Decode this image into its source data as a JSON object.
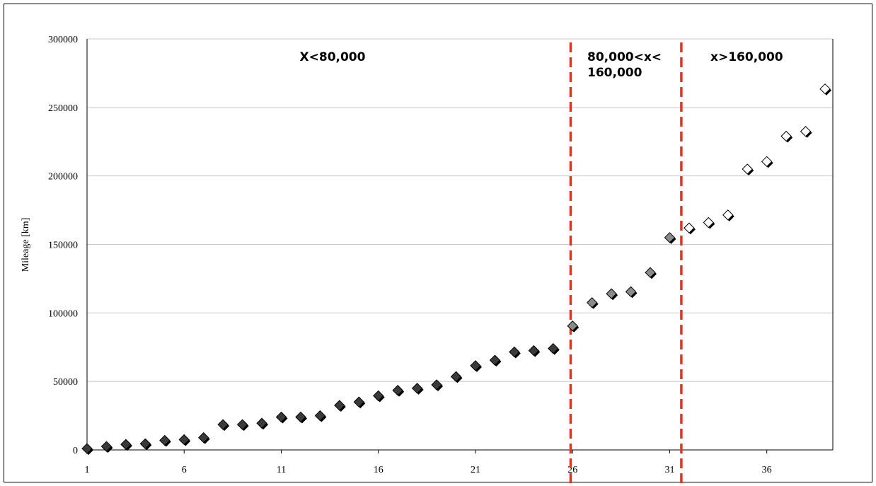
{
  "chart_data": {
    "type": "scatter",
    "title": "",
    "xlabel": "",
    "ylabel": "Mileage [km]",
    "xlim": [
      1,
      39.4
    ],
    "ylim": [
      0,
      300000
    ],
    "x_ticks": [
      "1",
      "6",
      "11",
      "16",
      "21",
      "26",
      "31",
      "36"
    ],
    "y_ticks": [
      "0",
      "50000",
      "100000",
      "150000",
      "200000",
      "250000",
      "300000"
    ],
    "grid": "horizontal",
    "legend": "none",
    "x": [
      1,
      2,
      3,
      4,
      5,
      6,
      7,
      8,
      9,
      10,
      11,
      12,
      13,
      14,
      15,
      16,
      17,
      18,
      19,
      20,
      21,
      22,
      23,
      24,
      25,
      26,
      27,
      28,
      29,
      30,
      31,
      32,
      33,
      34,
      35,
      36,
      37,
      38,
      39
    ],
    "y": [
      1000,
      2500,
      4000,
      4500,
      7000,
      7500,
      9000,
      18500,
      18500,
      19500,
      24000,
      24000,
      25000,
      32500,
      35000,
      39500,
      43500,
      45000,
      47500,
      53500,
      61500,
      65500,
      71500,
      72500,
      74000,
      90500,
      107500,
      114000,
      115500,
      129500,
      155000,
      162000,
      166000,
      171500,
      205000,
      210500,
      229000,
      232500,
      263500
    ],
    "series_colors": {
      "low": "#3a3a3a",
      "mid": "#8a8a8a",
      "high": "#ffffff"
    },
    "dividers": [
      {
        "x": 25.9,
        "color": "#e8341c"
      },
      {
        "x": 31.6,
        "color": "#e8341c"
      }
    ],
    "regions": [
      {
        "lines": [
          "X<80,000"
        ]
      },
      {
        "lines": [
          "80,000<x<",
          "160,000"
        ]
      },
      {
        "lines": [
          "x>160,000"
        ]
      }
    ]
  }
}
